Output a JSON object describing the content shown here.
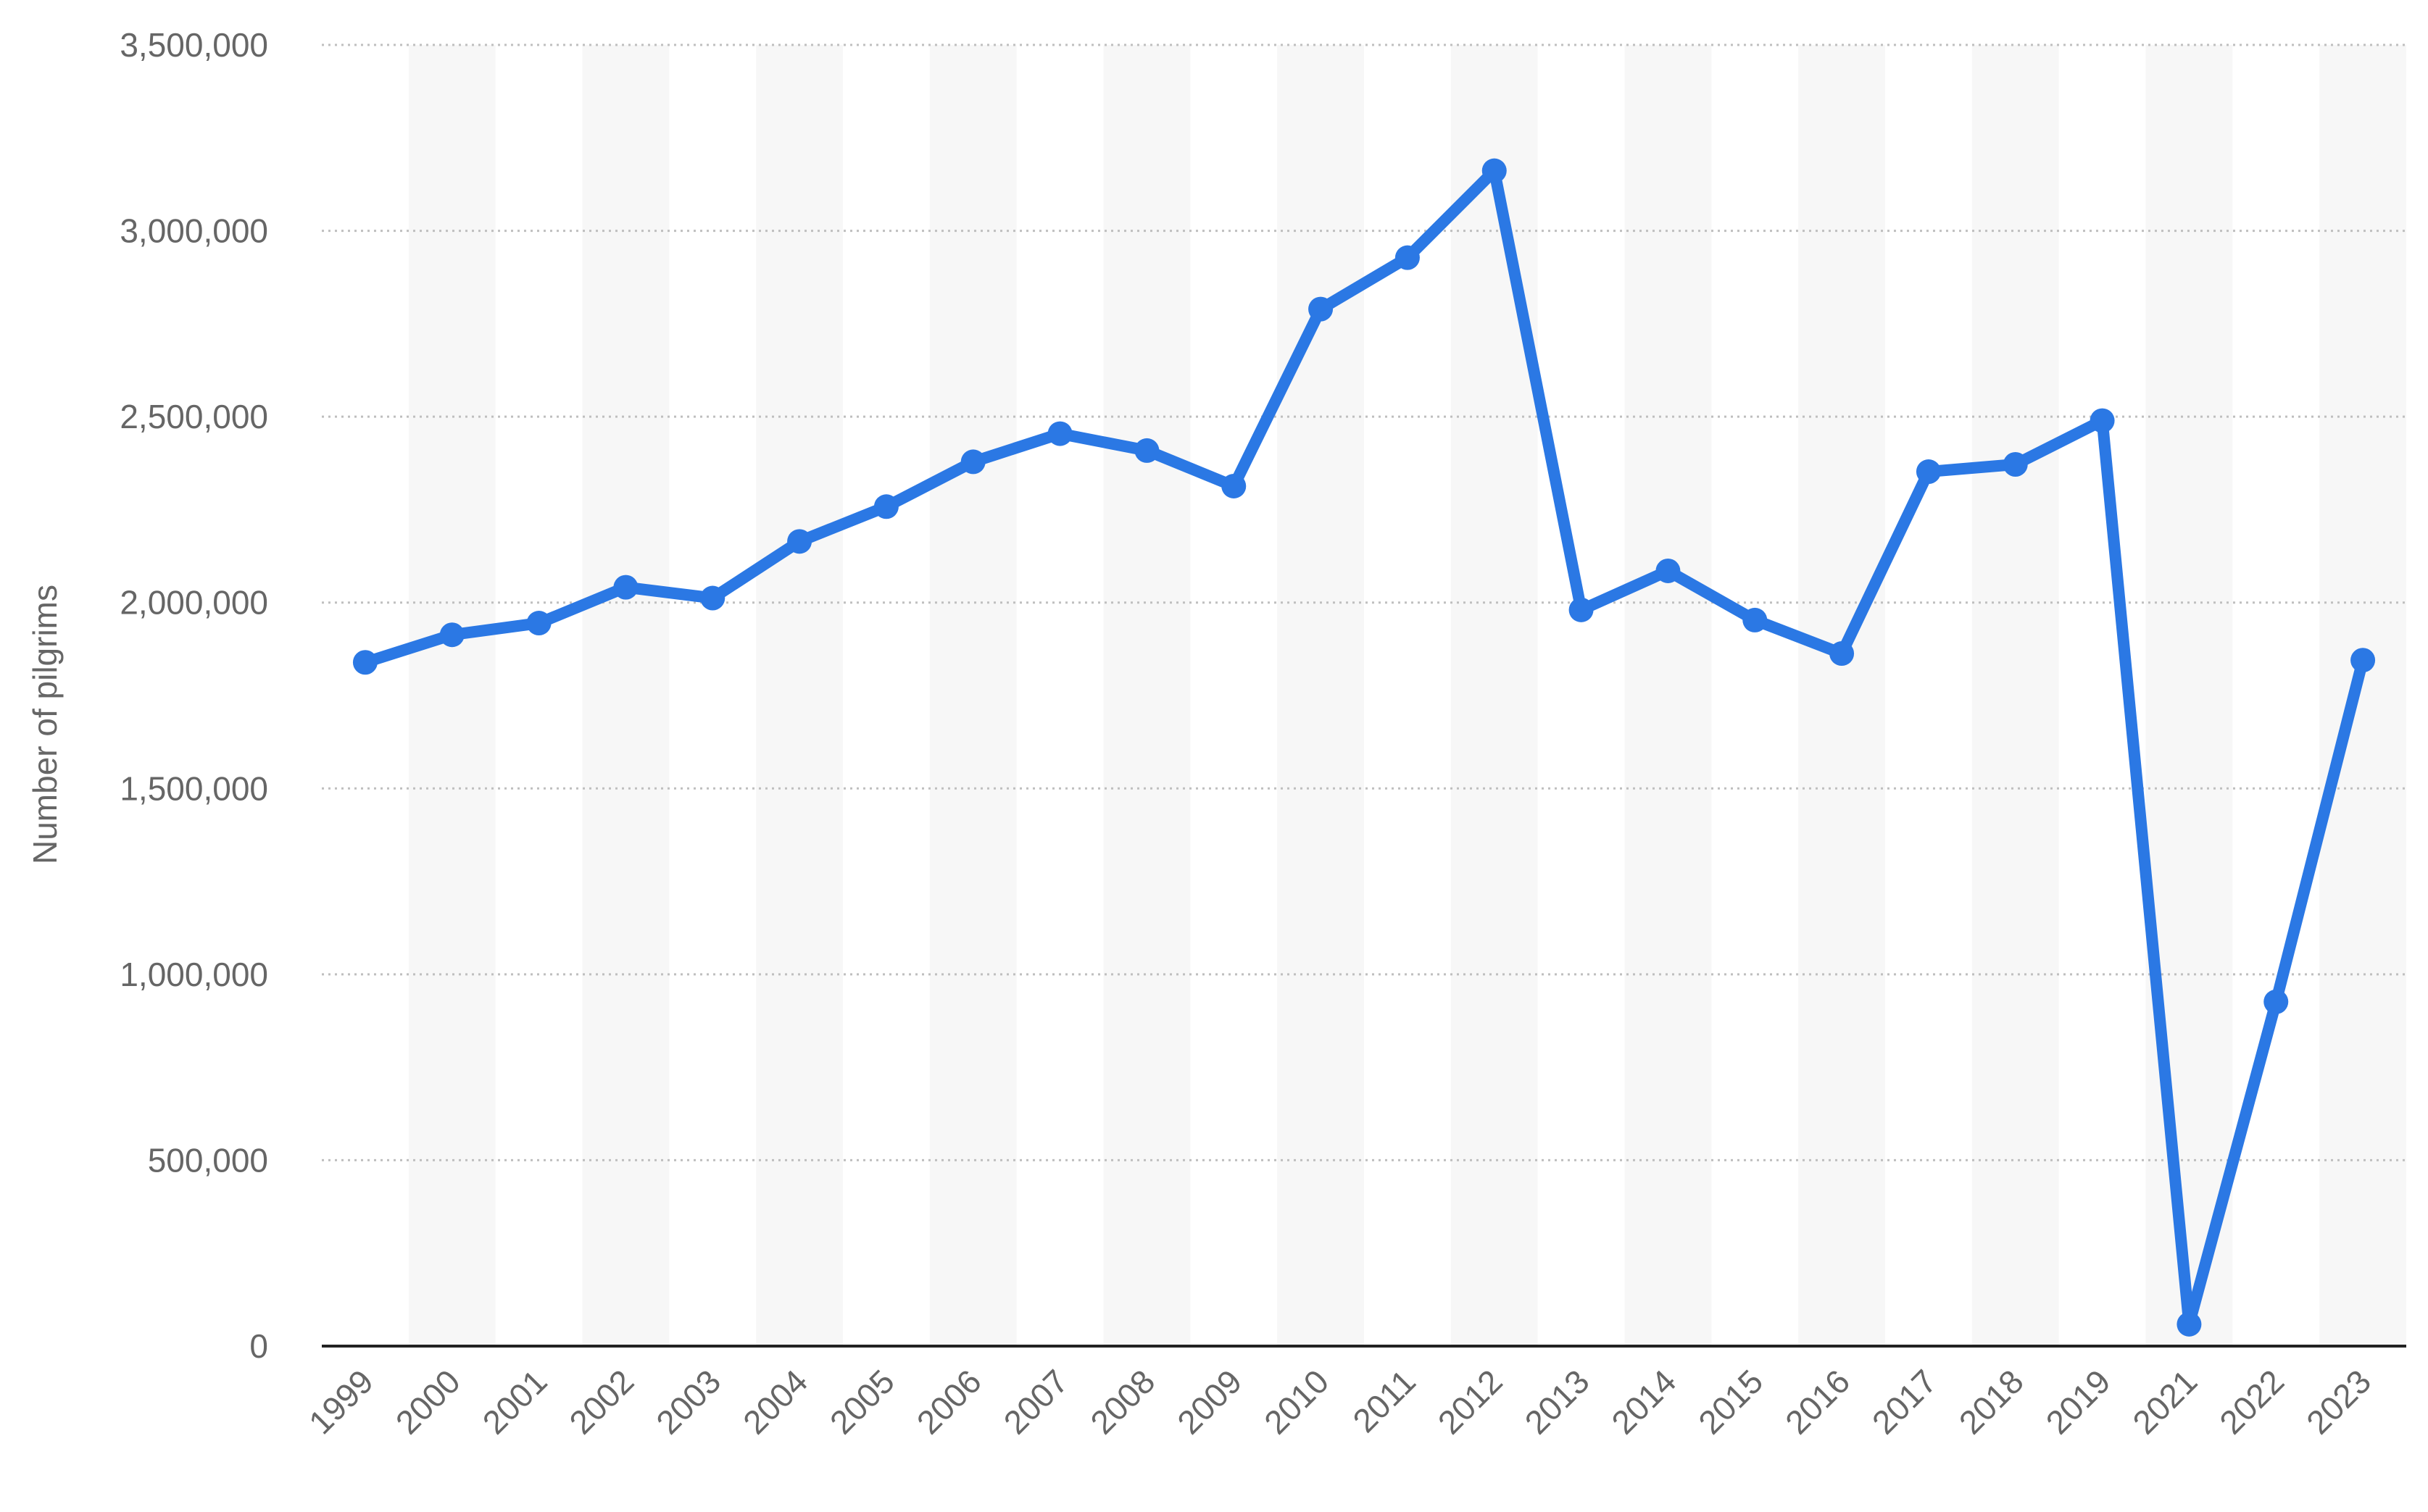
{
  "chart_data": {
    "type": "line",
    "ylabel": "Number of pilgrims",
    "categories": [
      "1999",
      "2000",
      "2001",
      "2002",
      "2003",
      "2004",
      "2005",
      "2006",
      "2007",
      "2008",
      "2009",
      "2010",
      "2011",
      "2012",
      "2013",
      "2014",
      "2015",
      "2016",
      "2017",
      "2018",
      "2019",
      "2021",
      "2022",
      "2023"
    ],
    "series": [
      {
        "values": [
          1839154,
          1913263,
          1944760,
          2041129,
          2012074,
          2164469,
          2258050,
          2378636,
          2454325,
          2408849,
          2313278,
          2789399,
          2927717,
          3161573,
          1980249,
          2085238,
          1952817,
          1862909,
          2352122,
          2371675,
          2489406,
          58745,
          926062,
          1845045
        ],
        "color": "#2b78e4"
      }
    ],
    "ylim": [
      0,
      3500000
    ],
    "yticks": [
      0,
      500000,
      1000000,
      1500000,
      2000000,
      2500000,
      3000000,
      3500000
    ],
    "ytick_labels": [
      "0",
      "500,000",
      "1,000,000",
      "1,500,000",
      "2,000,000",
      "2,500,000",
      "3,000,000",
      "3,500,000"
    ],
    "grid": true,
    "alternating_column_bands": true,
    "legend": "none",
    "colors": {
      "line": "#2b78e4",
      "grid": "#bfbfbf",
      "band": "#f7f7f7",
      "axis": "#222222",
      "tick_text": "#666666"
    }
  }
}
